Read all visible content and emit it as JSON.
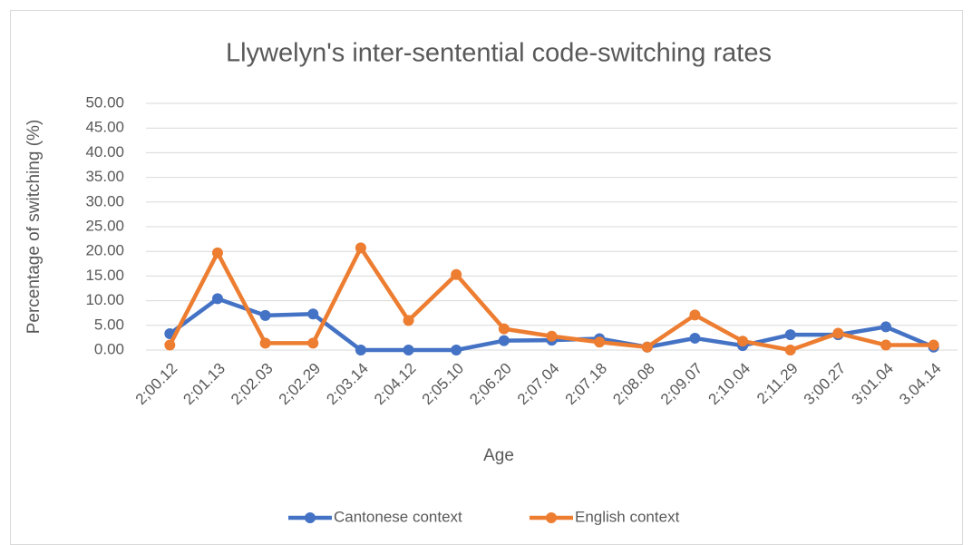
{
  "chart_data": {
    "type": "line",
    "title": "Llywelyn's inter-sentential code-switching rates",
    "x_label": "Age",
    "y_label": "Percentage of switching (%)",
    "categories": [
      "2;00.12",
      "2;01.13",
      "2;02.03",
      "2;02.29",
      "2;03.14",
      "2;04.12",
      "2;05.10",
      "2;06.20",
      "2;07.04",
      "2;07.18",
      "2;08.08",
      "2;09.07",
      "2;10.04",
      "2;11.29",
      "3;00.27",
      "3;01.04",
      "3.04.14"
    ],
    "series": [
      {
        "name": "Cantonese context",
        "color": "#4472c4",
        "values": [
          3.3,
          10.4,
          7.0,
          7.3,
          0.0,
          0.0,
          0.0,
          1.9,
          2.0,
          2.3,
          0.6,
          2.4,
          0.9,
          3.1,
          3.1,
          4.7,
          0.6
        ]
      },
      {
        "name": "English context",
        "color": "#ed7d31",
        "values": [
          1.0,
          19.7,
          1.4,
          1.4,
          20.7,
          6.0,
          15.3,
          4.3,
          2.8,
          1.6,
          0.6,
          7.1,
          1.8,
          0.0,
          3.4,
          1.0,
          1.0
        ]
      }
    ],
    "ylim": [
      0,
      50
    ],
    "yticks": [
      {
        "value": 0,
        "label": "0.00"
      },
      {
        "value": 5,
        "label": "5.00"
      },
      {
        "value": 10,
        "label": "10.00"
      },
      {
        "value": 15,
        "label": "15.00"
      },
      {
        "value": 20,
        "label": "20.00"
      },
      {
        "value": 25,
        "label": "25.00"
      },
      {
        "value": 30,
        "label": "30.00"
      },
      {
        "value": 35,
        "label": "35.00"
      },
      {
        "value": 40,
        "label": "40.00"
      },
      {
        "value": 45,
        "label": "45.00"
      },
      {
        "value": 50,
        "label": "50.00"
      }
    ],
    "grid": true,
    "legend": "bottom"
  }
}
